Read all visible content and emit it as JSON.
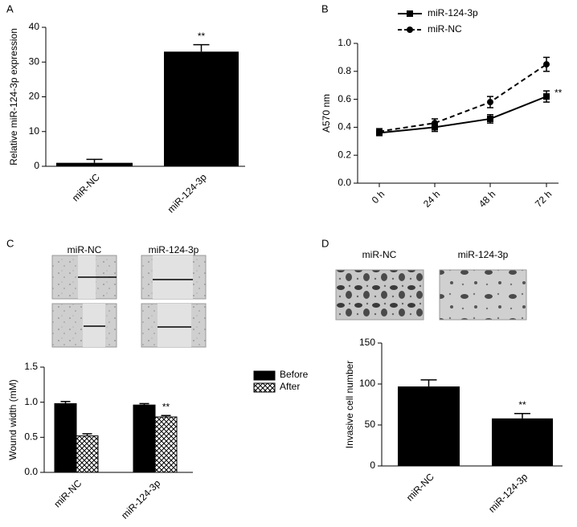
{
  "chart_data": [
    {
      "type": "bar",
      "panel": "A",
      "categories": [
        "miR-NC",
        "miR-124-3p"
      ],
      "values": [
        1,
        33
      ],
      "errors": [
        1,
        2
      ],
      "significance": [
        null,
        "**"
      ],
      "color": "#000000",
      "ylabel": "Relative miR-124-3p expression",
      "ylim": [
        0,
        40
      ],
      "yticks": [
        0,
        10,
        20,
        30,
        40
      ]
    },
    {
      "type": "line",
      "panel": "B",
      "categories": [
        "0 h",
        "24 h",
        "48 h",
        "72 h"
      ],
      "series": [
        {
          "name": "miR-124-3p",
          "color": "#000000",
          "dashed": false,
          "marker": "square",
          "values": [
            0.36,
            0.4,
            0.46,
            0.62
          ],
          "errors": [
            0.02,
            0.03,
            0.03,
            0.04
          ],
          "significance": [
            null,
            null,
            null,
            "**"
          ]
        },
        {
          "name": "miR-NC",
          "color": "#000000",
          "dashed": true,
          "marker": "circle",
          "values": [
            0.37,
            0.43,
            0.58,
            0.85
          ],
          "errors": [
            0.02,
            0.03,
            0.04,
            0.05
          ]
        }
      ],
      "ylabel": "A570 nm",
      "ylim": [
        0,
        1.0
      ],
      "yticks": [
        {
          "value": 0,
          "label": "0.0"
        },
        0.2,
        0.4,
        0.6,
        0.8,
        {
          "value": 1.0,
          "label": "1.0"
        }
      ],
      "legend": "top"
    },
    {
      "type": "grouped_bar",
      "panel": "C",
      "image_labels": [
        "miR-NC",
        "miR-124-3p"
      ],
      "categories": [
        "miR-NC",
        "miR-124-3p"
      ],
      "series": [
        {
          "name": "Before",
          "color": "#000000",
          "values": [
            0.98,
            0.96
          ],
          "errors": [
            0.03,
            0.02
          ]
        },
        {
          "name": "After",
          "color": "#ffffff",
          "pattern": "checker",
          "values": [
            0.52,
            0.79
          ],
          "errors": [
            0.03,
            0.02
          ],
          "significance": [
            null,
            "**"
          ]
        }
      ],
      "ylabel": "Wound width (mM)",
      "ylim": [
        0,
        1.5
      ],
      "yticks": [
        {
          "value": 0,
          "label": "0.0"
        },
        0.5,
        {
          "value": 1.0,
          "label": "1.0"
        },
        1.5
      ],
      "legend": "right"
    },
    {
      "type": "bar",
      "panel": "D",
      "image_labels": [
        "miR-NC",
        "miR-124-3p"
      ],
      "categories": [
        "miR-NC",
        "miR-124-3p"
      ],
      "values": [
        97,
        58
      ],
      "errors": [
        8,
        6
      ],
      "significance": [
        null,
        "**"
      ],
      "color": "#000000",
      "ylabel": "Invasive cell number",
      "ylim": [
        0,
        150
      ],
      "yticks": [
        0,
        50,
        100,
        150
      ]
    }
  ]
}
